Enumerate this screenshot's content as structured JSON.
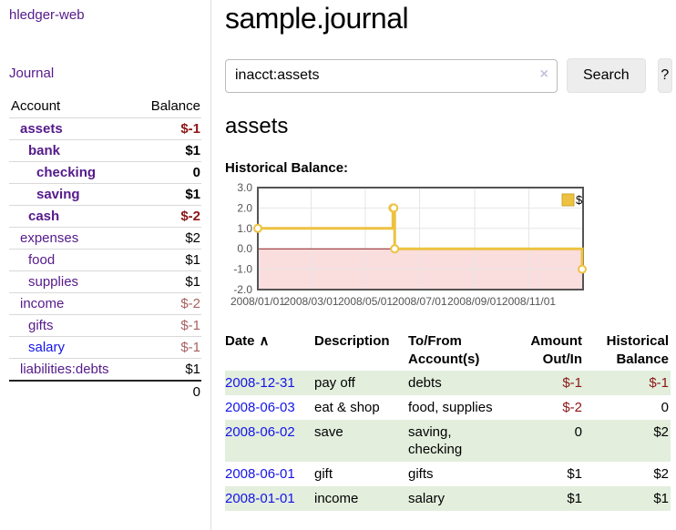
{
  "app": {
    "title": "hledger-web"
  },
  "theme": {
    "link_visited_purple": "#551a8b",
    "link_blue": "#1414e8",
    "negative_red": "#8b1515",
    "negative_soft_red": "#a86060",
    "row_green": "#e3eedd",
    "button_gray": "#ededed",
    "chart_line_gold": "#edc240",
    "chart_negative_region_pink": "#fadddd",
    "chart_zero_line_red": "#8b1a1a"
  },
  "sidebar": {
    "journal_label": "Journal",
    "accounts": {
      "headers": {
        "account": "Account",
        "balance": "Balance"
      },
      "rows": [
        {
          "name": "assets",
          "balance": "$-1"
        },
        {
          "name": "bank",
          "balance": "$1"
        },
        {
          "name": "checking",
          "balance": "0"
        },
        {
          "name": "saving",
          "balance": "$1"
        },
        {
          "name": "cash",
          "balance": "$-2"
        },
        {
          "name": "expenses",
          "balance": "$2"
        },
        {
          "name": "food",
          "balance": "$1"
        },
        {
          "name": "supplies",
          "balance": "$1"
        },
        {
          "name": "income",
          "balance": "$-2"
        },
        {
          "name": "gifts",
          "balance": "$-1"
        },
        {
          "name": "salary",
          "balance": "$-1"
        },
        {
          "name": "liabilities:debts",
          "balance": "$1"
        }
      ],
      "total": "0"
    }
  },
  "main": {
    "title": "sample.journal",
    "search": {
      "value": "inacct:assets",
      "clear_icon": "×",
      "search_label": "Search",
      "help_label": "?"
    },
    "account_heading": "assets",
    "chart_label": "Historical Balance:"
  },
  "chart_data": {
    "type": "line",
    "title": "Historical Balance",
    "step": true,
    "series": [
      {
        "name": "$",
        "color": "#edc240",
        "points": [
          [
            "2008-01-01",
            1
          ],
          [
            "2008-06-01",
            2
          ],
          [
            "2008-06-02",
            2
          ],
          [
            "2008-06-03",
            0
          ],
          [
            "2008-12-31",
            -1
          ]
        ]
      }
    ],
    "x_range": [
      "2008-01-01",
      "2009-01-01"
    ],
    "x_ticks": [
      "2008/01/01",
      "2008/03/01",
      "2008/05/01",
      "2008/07/01",
      "2008/09/01",
      "2008/11/01"
    ],
    "y_ticks": [
      3.0,
      2.0,
      1.0,
      0.0,
      -1.0,
      -2.0
    ],
    "ylim": [
      -2,
      3
    ],
    "grid": true,
    "legend": {
      "label": "$",
      "position": "top-right"
    },
    "negative_region_color": "#fadddd",
    "zero_line_color": "#8b1a1a"
  },
  "register": {
    "headers": {
      "date": "Date",
      "sort_icon": "∧",
      "description": "Description",
      "tofrom": [
        "To/From",
        "Account(s)"
      ],
      "amount": [
        "Amount",
        "Out/In"
      ],
      "historical": [
        "Historical",
        "Balance"
      ]
    },
    "rows": [
      {
        "date": "2008-12-31",
        "description": "pay off",
        "accounts": [
          "debts"
        ],
        "amount": "$-1",
        "balance": "$-1"
      },
      {
        "date": "2008-06-03",
        "description": "eat & shop",
        "accounts": [
          "food, supplies"
        ],
        "amount": "$-2",
        "balance": "0"
      },
      {
        "date": "2008-06-02",
        "description": "save",
        "accounts": [
          "saving,",
          "checking"
        ],
        "amount": "0",
        "balance": "$2"
      },
      {
        "date": "2008-06-01",
        "description": "gift",
        "accounts": [
          "gifts"
        ],
        "amount": "$1",
        "balance": "$2"
      },
      {
        "date": "2008-01-01",
        "description": "income",
        "accounts": [
          "salary"
        ],
        "amount": "$1",
        "balance": "$1"
      }
    ]
  }
}
